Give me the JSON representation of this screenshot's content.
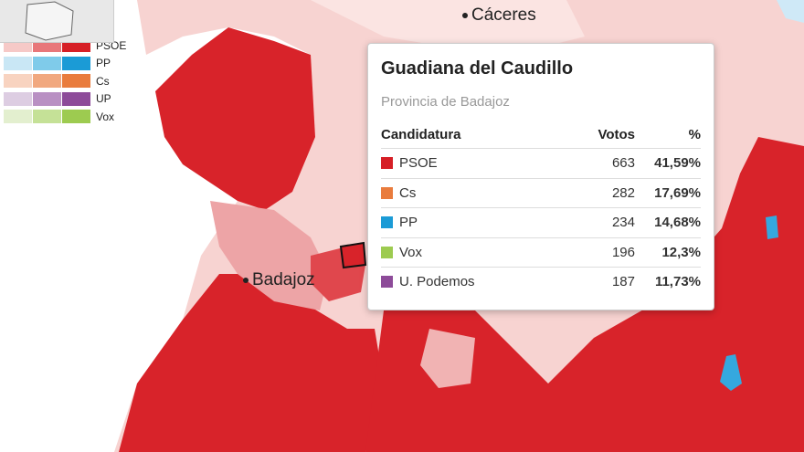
{
  "map_labels": {
    "cities": [
      "Cáceres",
      "Badajoz"
    ]
  },
  "legend": {
    "items": [
      {
        "label": "PSOE",
        "colors": [
          "#f6c9c7",
          "#e8777a",
          "#d61f26"
        ]
      },
      {
        "label": "PP",
        "colors": [
          "#c9e7f5",
          "#7fcbea",
          "#1b9bd6"
        ]
      },
      {
        "label": "Cs",
        "colors": [
          "#f8d3c0",
          "#f1a87f",
          "#e97c3d"
        ]
      },
      {
        "label": "UP",
        "colors": [
          "#ddcde2",
          "#b990c3",
          "#8d4b99"
        ]
      },
      {
        "label": "Vox",
        "colors": [
          "#e3efcf",
          "#c5e197",
          "#9dcb50"
        ]
      }
    ]
  },
  "tooltip": {
    "title": "Guadiana del Caudillo",
    "subtitle": "Provincia de Badajoz",
    "header": [
      "Candidatura",
      "Votos",
      "%"
    ],
    "rows": [
      {
        "party": "PSOE",
        "votes": "663",
        "percent": "41,59%",
        "color": "#d61f26"
      },
      {
        "party": "Cs",
        "votes": "282",
        "percent": "17,69%",
        "color": "#e97c3d"
      },
      {
        "party": "PP",
        "votes": "234",
        "percent": "14,68%",
        "color": "#1b9bd6"
      },
      {
        "party": "Vox",
        "votes": "196",
        "percent": "12,3%",
        "color": "#9dcb50"
      },
      {
        "party": "U. Podemos",
        "votes": "187",
        "percent": "11,73%",
        "color": "#8d4b99"
      }
    ]
  }
}
